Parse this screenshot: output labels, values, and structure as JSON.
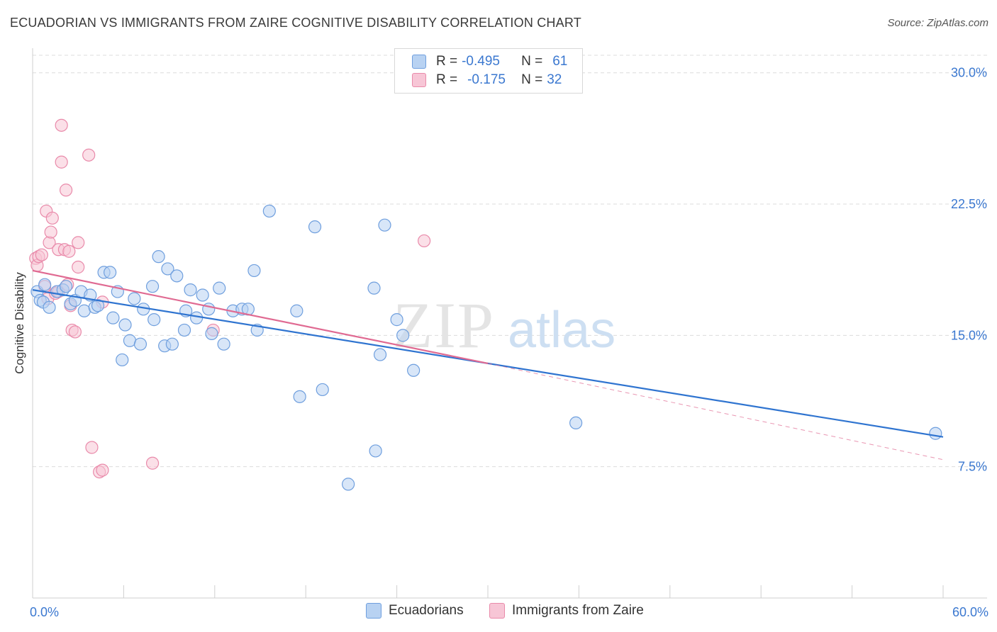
{
  "header": {
    "title": "ECUADORIAN VS IMMIGRANTS FROM ZAIRE COGNITIVE DISABILITY CORRELATION CHART",
    "source": "Source: ZipAtlas.com"
  },
  "stats_box": {
    "row1": {
      "r_label": "R =",
      "r_value": "-0.495",
      "n_label": "N =",
      "n_value": "61"
    },
    "row2": {
      "r_label": "R =",
      "r_value": "-0.175",
      "n_label": "N =",
      "n_value": "32"
    }
  },
  "legend": {
    "items": [
      "Ecuadorians",
      "Immigrants from Zaire"
    ]
  },
  "watermark": {
    "zip": "ZIP",
    "atlas": "atlas"
  },
  "colors": {
    "blue_fill": "#b8d2f2",
    "blue_stroke": "#6f9fde",
    "blue_line": "#2f74d0",
    "pink_fill": "#f7c6d6",
    "pink_stroke": "#e98aaa",
    "pink_line": "#e06a92",
    "grid": "#dcdcdc",
    "tick_text": "#3b78d0"
  },
  "chart_data": {
    "type": "scatter",
    "title": "ECUADORIAN VS IMMIGRANTS FROM ZAIRE COGNITIVE DISABILITY CORRELATION CHART",
    "xlabel": "",
    "ylabel": "Cognitive Disability",
    "xlim": [
      0,
      60
    ],
    "ylim": [
      0,
      31
    ],
    "x_tick_labels": [
      {
        "value": 0,
        "label": "0.0%"
      },
      {
        "value": 60,
        "label": "60.0%"
      }
    ],
    "y_tick_labels": [
      {
        "value": 7.5,
        "label": "7.5%"
      },
      {
        "value": 15.0,
        "label": "15.0%"
      },
      {
        "value": 22.5,
        "label": "22.5%"
      },
      {
        "value": 30.0,
        "label": "30.0%"
      }
    ],
    "series": [
      {
        "name": "Ecuadorians",
        "r": -0.495,
        "n": 61,
        "trend": {
          "x1": 0,
          "y1": 17.6,
          "x2": 60,
          "y2": 9.2
        },
        "points": [
          [
            0.3,
            17.5
          ],
          [
            0.5,
            17.0
          ],
          [
            0.7,
            16.9
          ],
          [
            0.8,
            17.9
          ],
          [
            1.1,
            16.6
          ],
          [
            1.6,
            17.5
          ],
          [
            2.0,
            17.6
          ],
          [
            2.2,
            17.8
          ],
          [
            2.5,
            16.8
          ],
          [
            2.8,
            17.0
          ],
          [
            3.2,
            17.5
          ],
          [
            3.4,
            16.4
          ],
          [
            3.8,
            17.3
          ],
          [
            4.1,
            16.6
          ],
          [
            4.3,
            16.7
          ],
          [
            4.7,
            18.6
          ],
          [
            5.1,
            18.6
          ],
          [
            5.3,
            16.0
          ],
          [
            5.6,
            17.5
          ],
          [
            5.9,
            13.6
          ],
          [
            6.1,
            15.6
          ],
          [
            6.4,
            14.7
          ],
          [
            6.7,
            17.1
          ],
          [
            7.1,
            14.5
          ],
          [
            7.3,
            16.5
          ],
          [
            7.9,
            17.8
          ],
          [
            8.0,
            15.9
          ],
          [
            8.3,
            19.5
          ],
          [
            8.7,
            14.4
          ],
          [
            8.9,
            18.8
          ],
          [
            9.2,
            14.5
          ],
          [
            9.5,
            18.4
          ],
          [
            10.0,
            15.3
          ],
          [
            10.1,
            16.4
          ],
          [
            10.4,
            17.6
          ],
          [
            10.8,
            16.0
          ],
          [
            11.2,
            17.3
          ],
          [
            11.6,
            16.5
          ],
          [
            11.8,
            15.1
          ],
          [
            12.3,
            17.7
          ],
          [
            12.6,
            14.5
          ],
          [
            13.2,
            16.4
          ],
          [
            13.8,
            16.5
          ],
          [
            14.2,
            16.5
          ],
          [
            14.6,
            18.7
          ],
          [
            14.8,
            15.3
          ],
          [
            15.6,
            22.1
          ],
          [
            17.4,
            16.4
          ],
          [
            17.6,
            11.5
          ],
          [
            18.6,
            21.2
          ],
          [
            19.1,
            11.9
          ],
          [
            20.8,
            6.5
          ],
          [
            22.5,
            17.7
          ],
          [
            22.6,
            8.4
          ],
          [
            22.9,
            13.9
          ],
          [
            23.2,
            21.3
          ],
          [
            24.0,
            15.9
          ],
          [
            24.4,
            15.0
          ],
          [
            25.1,
            13.0
          ],
          [
            35.8,
            10.0
          ],
          [
            59.5,
            9.4
          ]
        ]
      },
      {
        "name": "Immigrants from Zaire",
        "r": -0.175,
        "n": 32,
        "trend": {
          "x1": 0,
          "y1": 18.7,
          "x2": 30,
          "y2": 13.4
        },
        "trend_ext": {
          "x1": 30,
          "y1": 13.4,
          "x2": 60,
          "y2": 7.9
        },
        "points": [
          [
            0.2,
            19.4
          ],
          [
            0.3,
            19.0
          ],
          [
            0.4,
            19.5
          ],
          [
            0.6,
            19.6
          ],
          [
            0.8,
            17.8
          ],
          [
            0.9,
            22.1
          ],
          [
            1.0,
            17.1
          ],
          [
            1.1,
            20.3
          ],
          [
            1.2,
            20.9
          ],
          [
            1.3,
            21.7
          ],
          [
            1.5,
            17.4
          ],
          [
            1.7,
            17.5
          ],
          [
            1.7,
            19.9
          ],
          [
            1.9,
            27.0
          ],
          [
            1.9,
            24.9
          ],
          [
            2.1,
            19.9
          ],
          [
            2.2,
            23.3
          ],
          [
            2.3,
            17.9
          ],
          [
            2.4,
            19.8
          ],
          [
            2.5,
            16.7
          ],
          [
            2.6,
            15.3
          ],
          [
            2.8,
            15.2
          ],
          [
            3.0,
            20.3
          ],
          [
            3.0,
            18.9
          ],
          [
            3.7,
            25.3
          ],
          [
            3.9,
            8.6
          ],
          [
            4.4,
            7.2
          ],
          [
            4.6,
            7.3
          ],
          [
            4.6,
            16.9
          ],
          [
            7.9,
            7.7
          ],
          [
            11.9,
            15.3
          ],
          [
            25.8,
            20.4
          ]
        ]
      }
    ]
  }
}
